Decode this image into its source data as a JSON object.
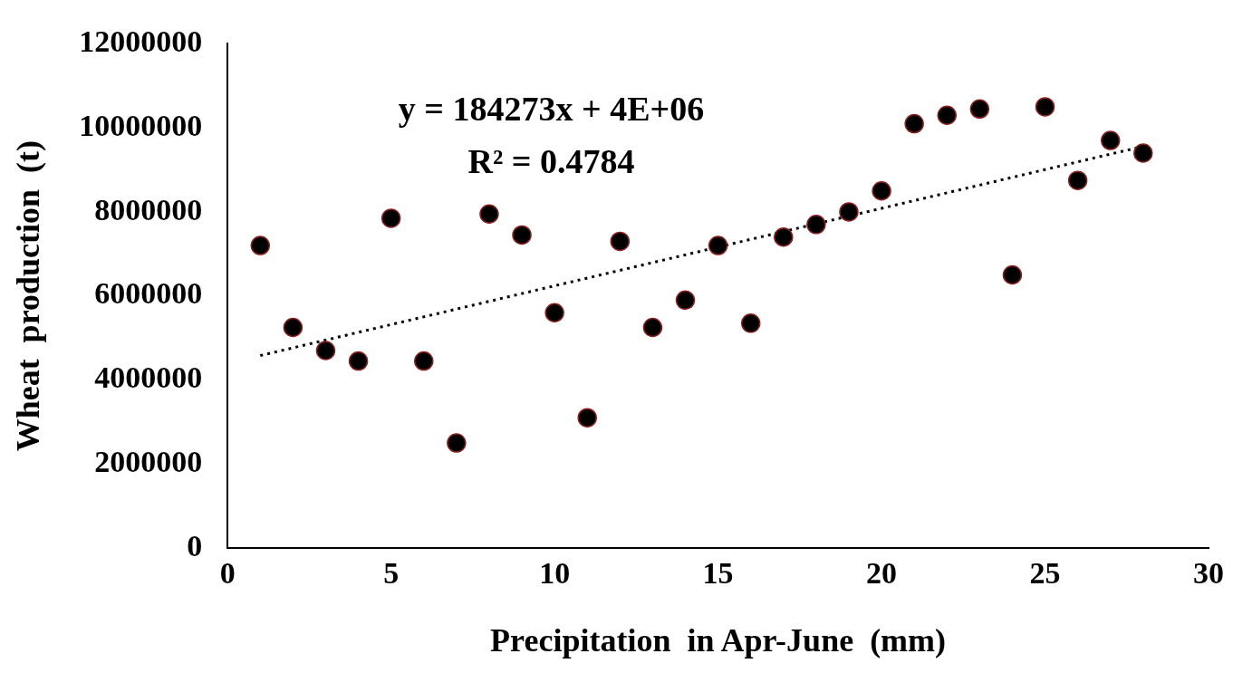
{
  "chart_data": {
    "type": "scatter",
    "xlabel": "Precipitation  in Apr-June  (mm)",
    "ylabel": "Wheat  production  (t)",
    "xlim": [
      0,
      30
    ],
    "xticks": [
      0,
      5,
      10,
      15,
      20,
      25,
      30
    ],
    "ylim": [
      0,
      12000000
    ],
    "yticks": [
      0,
      2000000,
      4000000,
      6000000,
      8000000,
      10000000,
      12000000
    ],
    "grid": false,
    "legend": false,
    "marker": "circle",
    "annotations": [
      "y = 184273x + 4E+06",
      "R² = 0.4784"
    ],
    "series": [
      {
        "color": "#000000",
        "x": [
          1,
          2,
          3,
          4,
          5,
          6,
          7,
          8,
          9,
          10,
          11,
          12,
          13,
          14,
          15,
          16,
          17,
          18,
          19,
          20,
          21,
          22,
          23,
          24,
          25,
          26,
          27,
          28
        ],
        "values": [
          7200000,
          5250000,
          4700000,
          4450000,
          7850000,
          4450000,
          2500000,
          7950000,
          7450000,
          5600000,
          3100000,
          7300000,
          5250000,
          5900000,
          7200000,
          5350000,
          7400000,
          7700000,
          8000000,
          8500000,
          10100000,
          10300000,
          10450000,
          6500000,
          10500000,
          8750000,
          9700000,
          9400000
        ]
      },
      {
        "type": "line",
        "color": "#000000",
        "line_style": "dotted",
        "marker": "none",
        "x": [
          1,
          28
        ],
        "values": [
          4580000,
          9560000
        ]
      }
    ]
  }
}
